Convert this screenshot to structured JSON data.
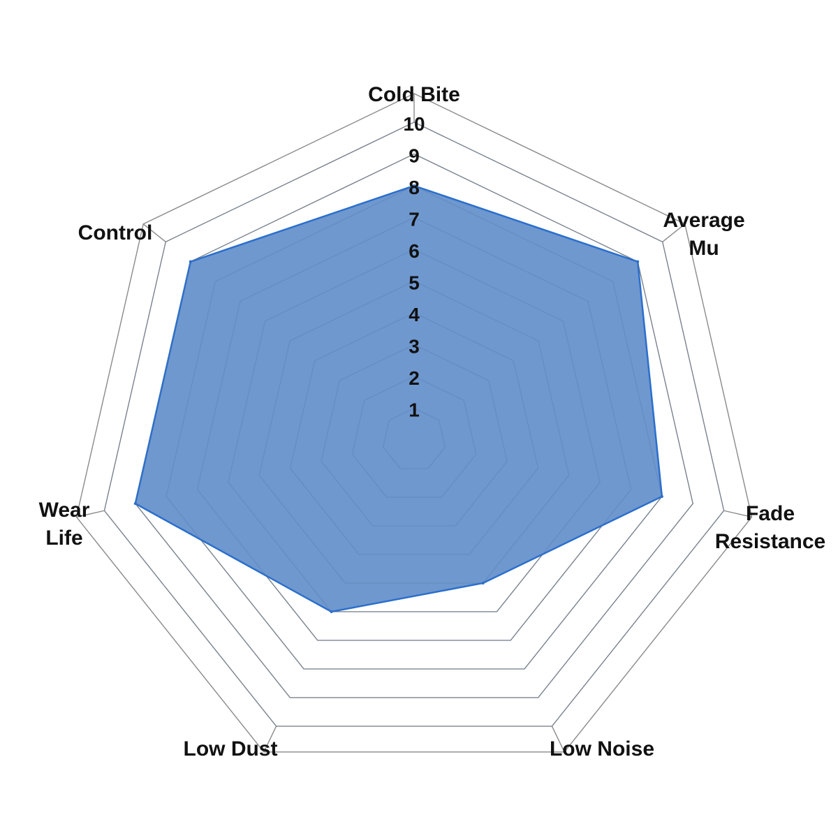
{
  "chart_data": {
    "type": "radar",
    "axes": [
      "Cold Bite",
      "Average Mu",
      "Fade Resistance",
      "Low Noise",
      "Low Dust",
      "Wear Life",
      "Control"
    ],
    "axis_label_lines": [
      [
        "Cold Bite"
      ],
      [
        "Average",
        "Mu"
      ],
      [
        "Fade",
        "Resistance"
      ],
      [
        "Low Noise"
      ],
      [
        "Low Dust"
      ],
      [
        "Wear",
        "Life"
      ],
      [
        "Control"
      ]
    ],
    "values": [
      8,
      9,
      8,
      5,
      6,
      9,
      9
    ],
    "range": [
      0,
      10
    ],
    "ticks": [
      "1",
      "2",
      "3",
      "4",
      "5",
      "6",
      "7",
      "8",
      "9",
      "10"
    ],
    "grid": true,
    "colors": {
      "fill": "#6f98cf",
      "stroke": "#2b6fcc",
      "grid": "#8a8a8a"
    }
  }
}
